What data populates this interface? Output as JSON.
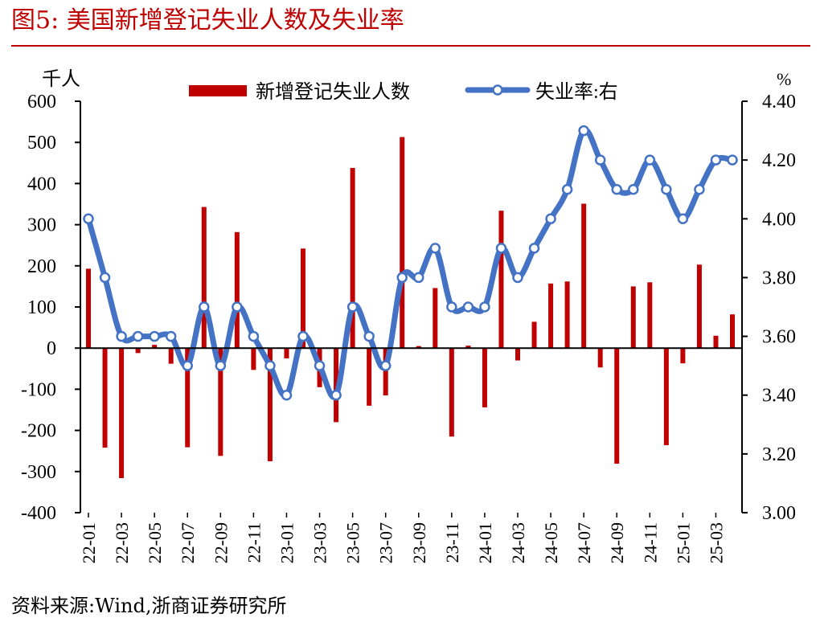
{
  "figure": {
    "title": "图5:   美国新增登记失业人数及失业率",
    "source": "资料来源:Wind,浙商证券研究所"
  },
  "colors": {
    "bar": "#c00000",
    "line": "#4472c4",
    "title": "#c00000"
  },
  "chart_data": {
    "type": "bar+line",
    "left_unit": "千人",
    "right_unit": "%",
    "left_ylim": [
      -400,
      600
    ],
    "left_ticks": [
      "-400",
      "-300",
      "-200",
      "-100",
      "0",
      "100",
      "200",
      "300",
      "400",
      "500",
      "600"
    ],
    "right_ylim": [
      3.0,
      4.4
    ],
    "right_ticks": [
      "3.00",
      "3.20",
      "3.40",
      "3.60",
      "3.80",
      "4.00",
      "4.20",
      "4.40"
    ],
    "tick_labels": [
      "22-01",
      "22-03",
      "22-05",
      "22-07",
      "22-09",
      "22-11",
      "23-01",
      "23-03",
      "23-05",
      "23-07",
      "23-09",
      "23-11",
      "24-01",
      "24-03",
      "24-05",
      "24-07",
      "24-09",
      "24-11",
      "25-01",
      "25-03"
    ],
    "categories": [
      "22-01",
      "22-02",
      "22-03",
      "22-04",
      "22-05",
      "22-06",
      "22-07",
      "22-08",
      "22-09",
      "22-10",
      "22-11",
      "22-12",
      "23-01",
      "23-02",
      "23-03",
      "23-04",
      "23-05",
      "23-06",
      "23-07",
      "23-08",
      "23-09",
      "23-10",
      "23-11",
      "23-12",
      "24-01",
      "24-02",
      "24-03",
      "24-04",
      "24-05",
      "24-06",
      "24-07",
      "24-08",
      "24-09",
      "24-10",
      "24-11",
      "24-12",
      "25-01",
      "25-02",
      "25-03",
      "25-04"
    ],
    "series": [
      {
        "name": "新增登记失业人数",
        "type": "bar",
        "axis": "left",
        "values": [
          193,
          -242,
          -316,
          -12,
          8,
          -38,
          -241,
          343,
          -262,
          282,
          -53,
          -275,
          -25,
          242,
          -95,
          -180,
          438,
          -140,
          -115,
          513,
          5,
          146,
          -215,
          6,
          -144,
          334,
          -30,
          64,
          157,
          162,
          351,
          -47,
          -281,
          150,
          160,
          -236,
          -37,
          203,
          30,
          82
        ]
      },
      {
        "name": "失业率:右",
        "type": "line",
        "axis": "right",
        "values": [
          4.0,
          3.8,
          3.6,
          3.6,
          3.6,
          3.6,
          3.5,
          3.7,
          3.5,
          3.7,
          3.6,
          3.5,
          3.4,
          3.6,
          3.5,
          3.4,
          3.7,
          3.6,
          3.5,
          3.8,
          3.8,
          3.9,
          3.7,
          3.7,
          3.7,
          3.9,
          3.8,
          3.9,
          4.0,
          4.1,
          4.3,
          4.2,
          4.1,
          4.1,
          4.2,
          4.1,
          4.0,
          4.1,
          4.2,
          4.2
        ]
      }
    ]
  }
}
